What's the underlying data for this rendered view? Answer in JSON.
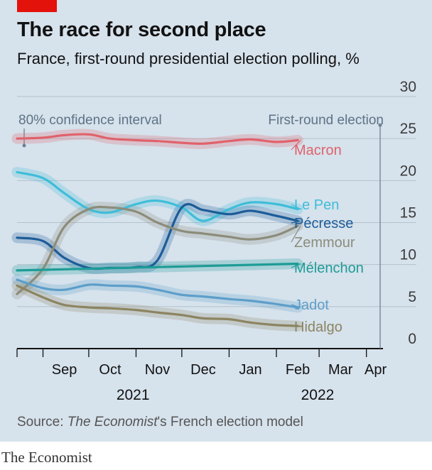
{
  "header": {
    "title": "The race for second place",
    "subtitle": "France, first-round presidential election polling, %"
  },
  "source": {
    "label": "Source: ",
    "publication": "The Economist",
    "rest": "'s French election model"
  },
  "footer": {
    "brand": "The Economist"
  },
  "chart_data": {
    "type": "line",
    "title": "The race for second place",
    "subtitle": "France, first-round presidential election polling, %",
    "ylim": [
      0,
      30
    ],
    "yticks": [
      0,
      5,
      10,
      15,
      20,
      25,
      30
    ],
    "x_start": "2021-08-15",
    "x_end": "2022-04-10",
    "months": [
      {
        "label": "Sep",
        "date": "2021-09-15"
      },
      {
        "label": "Oct",
        "date": "2021-10-15"
      },
      {
        "label": "Nov",
        "date": "2021-11-15"
      },
      {
        "label": "Dec",
        "date": "2021-12-15"
      },
      {
        "label": "Jan",
        "date": "2022-01-15"
      },
      {
        "label": "Feb",
        "date": "2022-02-15"
      },
      {
        "label": "Mar",
        "date": "2022-03-15"
      },
      {
        "label": "Apr",
        "date": "2022-04-07"
      }
    ],
    "month_boundaries": [
      "2021-08-15",
      "2021-09-01",
      "2021-10-01",
      "2021-11-01",
      "2021-12-01",
      "2022-01-01",
      "2022-02-01",
      "2022-03-01",
      "2022-04-01"
    ],
    "years": [
      {
        "label": "2021",
        "date": "2021-10-30"
      },
      {
        "label": "2022",
        "date": "2022-02-28"
      }
    ],
    "ci_label": "80% confidence interval",
    "election": {
      "label": "First-round election",
      "date": "2022-04-10"
    },
    "grid": true,
    "series": [
      {
        "name": "Macron",
        "color": "#e0626b",
        "x": [
          "2021-08-15",
          "2021-09-01",
          "2021-09-15",
          "2021-10-01",
          "2021-10-15",
          "2021-11-01",
          "2021-11-15",
          "2021-12-01",
          "2021-12-15",
          "2022-01-01",
          "2022-01-15",
          "2022-02-01",
          "2022-02-15"
        ],
        "y": [
          25.0,
          25.1,
          25.4,
          25.5,
          25.0,
          24.8,
          24.7,
          24.5,
          24.4,
          24.7,
          24.9,
          24.6,
          24.8
        ]
      },
      {
        "name": "Le Pen",
        "color": "#3ebdd8",
        "x": [
          "2021-08-15",
          "2021-09-01",
          "2021-09-15",
          "2021-10-01",
          "2021-10-15",
          "2021-11-01",
          "2021-11-15",
          "2021-12-01",
          "2021-12-15",
          "2022-01-01",
          "2022-01-15",
          "2022-02-01",
          "2022-02-15"
        ],
        "y": [
          21.0,
          20.3,
          18.5,
          16.6,
          16.2,
          17.2,
          17.6,
          16.8,
          15.2,
          16.6,
          17.4,
          17.2,
          16.6
        ]
      },
      {
        "name": "Pécresse",
        "color": "#1d5c99",
        "x": [
          "2021-08-15",
          "2021-09-01",
          "2021-09-15",
          "2021-10-01",
          "2021-10-15",
          "2021-11-01",
          "2021-11-15",
          "2021-12-01",
          "2021-12-15",
          "2022-01-01",
          "2022-01-15",
          "2022-02-01",
          "2022-02-15"
        ],
        "y": [
          13.2,
          12.8,
          10.8,
          9.6,
          9.6,
          9.7,
          10.5,
          16.8,
          16.5,
          16.0,
          16.4,
          15.8,
          15.2
        ]
      },
      {
        "name": "Zemmour",
        "color": "#8c8c7a",
        "x": [
          "2021-08-15",
          "2021-09-01",
          "2021-09-15",
          "2021-10-01",
          "2021-10-15",
          "2021-11-01",
          "2021-11-15",
          "2021-12-01",
          "2021-12-15",
          "2022-01-01",
          "2022-01-15",
          "2022-02-01",
          "2022-02-15"
        ],
        "y": [
          6.5,
          9.5,
          14.5,
          16.6,
          16.8,
          16.3,
          15.0,
          14.0,
          13.7,
          13.3,
          13.0,
          13.5,
          14.6
        ]
      },
      {
        "name": "Mélenchon",
        "color": "#1d9c96",
        "x": [
          "2021-08-15",
          "2022-02-15"
        ],
        "y": [
          9.3,
          10.1
        ]
      },
      {
        "name": "Jadot",
        "color": "#5d9ec9",
        "x": [
          "2021-08-15",
          "2021-09-01",
          "2021-09-15",
          "2021-10-01",
          "2021-10-15",
          "2021-11-01",
          "2021-11-15",
          "2021-12-01",
          "2021-12-15",
          "2022-01-01",
          "2022-01-15",
          "2022-02-01",
          "2022-02-15"
        ],
        "y": [
          8.2,
          7.2,
          7.0,
          7.6,
          7.5,
          7.4,
          7.0,
          6.4,
          6.2,
          5.9,
          5.7,
          5.3,
          4.9
        ]
      },
      {
        "name": "Hidalgo",
        "color": "#8c8461",
        "x": [
          "2021-08-15",
          "2021-09-01",
          "2021-09-15",
          "2021-10-01",
          "2021-10-15",
          "2021-11-01",
          "2021-11-15",
          "2021-12-01",
          "2021-12-15",
          "2022-01-01",
          "2022-01-15",
          "2022-02-01",
          "2022-02-15"
        ],
        "y": [
          7.5,
          6.1,
          5.2,
          4.9,
          4.8,
          4.6,
          4.3,
          4.0,
          3.6,
          3.5,
          3.1,
          2.8,
          2.7
        ]
      }
    ]
  }
}
